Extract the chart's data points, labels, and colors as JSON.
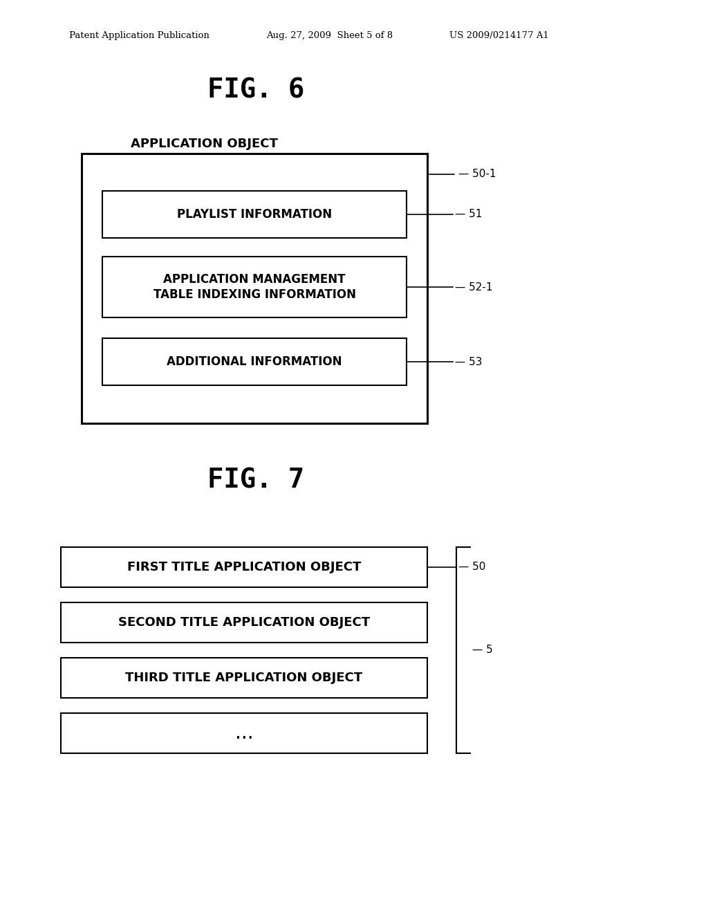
{
  "bg_color": "#ffffff",
  "header_left": "Patent Application Publication",
  "header_mid": "Aug. 27, 2009  Sheet 5 of 8",
  "header_right": "US 2009/0214177 A1",
  "fig6_title": "FIG. 6",
  "fig7_title": "FIG. 7",
  "fig6_label": "APPLICATION OBJECT",
  "fig6_outer_ref": "50-1",
  "fig6_inner_boxes": [
    {
      "label": "PLAYLIST INFORMATION",
      "ref": "51"
    },
    {
      "label": "APPLICATION MANAGEMENT\nTABLE INDEXING INFORMATION",
      "ref": "52-1"
    },
    {
      "label": "ADDITIONAL INFORMATION",
      "ref": "53"
    }
  ],
  "fig7_boxes": [
    {
      "label": "FIRST TITLE APPLICATION OBJECT",
      "ref": "50"
    },
    {
      "label": "SECOND TITLE APPLICATION OBJECT",
      "ref": ""
    },
    {
      "label": "THIRD TITLE APPLICATION OBJECT",
      "ref": ""
    },
    {
      "label": "...",
      "ref": ""
    }
  ],
  "fig7_brace_ref": "5",
  "text_color": "#000000"
}
